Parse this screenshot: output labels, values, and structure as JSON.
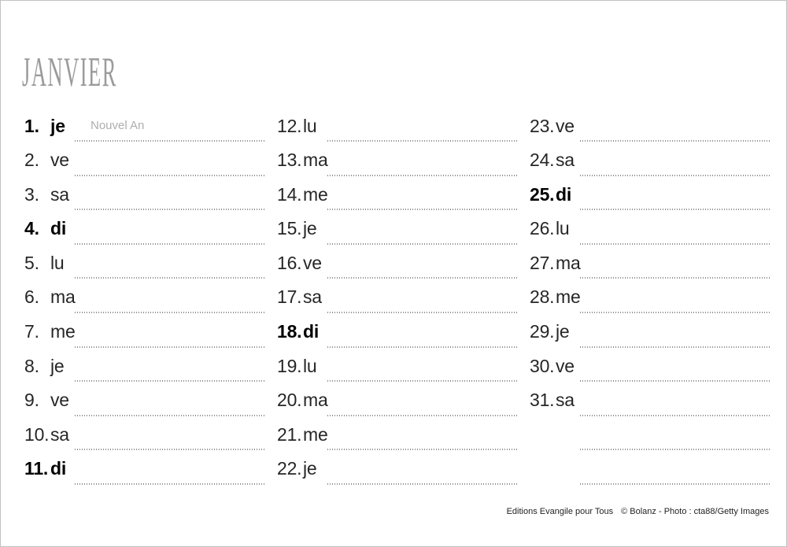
{
  "page": {
    "title": "JANVIER",
    "footer": {
      "publisher": "Editions Evangile pour Tous",
      "credit": "© Bolanz - Photo : cta88/Getty Images"
    }
  },
  "colors": {
    "title_gray": "#9b9b9b",
    "text_dark": "#262626",
    "bold_black": "#000000",
    "note_gray": "#aeaeae",
    "dotted_line": "#8f8f8f",
    "page_border": "#c2c2c2"
  },
  "calendar": {
    "columns": [
      {
        "entries": [
          {
            "num": "1.",
            "day": "je",
            "bold": true,
            "note": "Nouvel An"
          },
          {
            "num": "2.",
            "day": "ve"
          },
          {
            "num": "3.",
            "day": "sa"
          },
          {
            "num": "4.",
            "day": "di",
            "bold": true
          },
          {
            "num": "5.",
            "day": "lu"
          },
          {
            "num": "6.",
            "day": "ma"
          },
          {
            "num": "7.",
            "day": "me"
          },
          {
            "num": "8.",
            "day": "je"
          },
          {
            "num": "9.",
            "day": "ve"
          },
          {
            "num": "10.",
            "day": "sa"
          },
          {
            "num": "11.",
            "day": "di",
            "bold": true
          }
        ]
      },
      {
        "entries": [
          {
            "num": "12.",
            "day": "lu"
          },
          {
            "num": "13.",
            "day": "ma"
          },
          {
            "num": "14.",
            "day": "me"
          },
          {
            "num": "15.",
            "day": "je"
          },
          {
            "num": "16.",
            "day": "ve"
          },
          {
            "num": "17.",
            "day": "sa"
          },
          {
            "num": "18.",
            "day": "di",
            "bold": true
          },
          {
            "num": "19.",
            "day": "lu"
          },
          {
            "num": "20.",
            "day": "ma"
          },
          {
            "num": "21.",
            "day": "me"
          },
          {
            "num": "22.",
            "day": "je"
          }
        ]
      },
      {
        "entries": [
          {
            "num": "23.",
            "day": "ve"
          },
          {
            "num": "24.",
            "day": "sa"
          },
          {
            "num": "25.",
            "day": "di",
            "bold": true
          },
          {
            "num": "26.",
            "day": "lu"
          },
          {
            "num": "27.",
            "day": "ma"
          },
          {
            "num": "28.",
            "day": "me"
          },
          {
            "num": "29.",
            "day": "je"
          },
          {
            "num": "30.",
            "day": "ve"
          },
          {
            "num": "31.",
            "day": "sa"
          },
          {
            "num": "",
            "day": ""
          },
          {
            "num": "",
            "day": ""
          }
        ]
      }
    ]
  }
}
